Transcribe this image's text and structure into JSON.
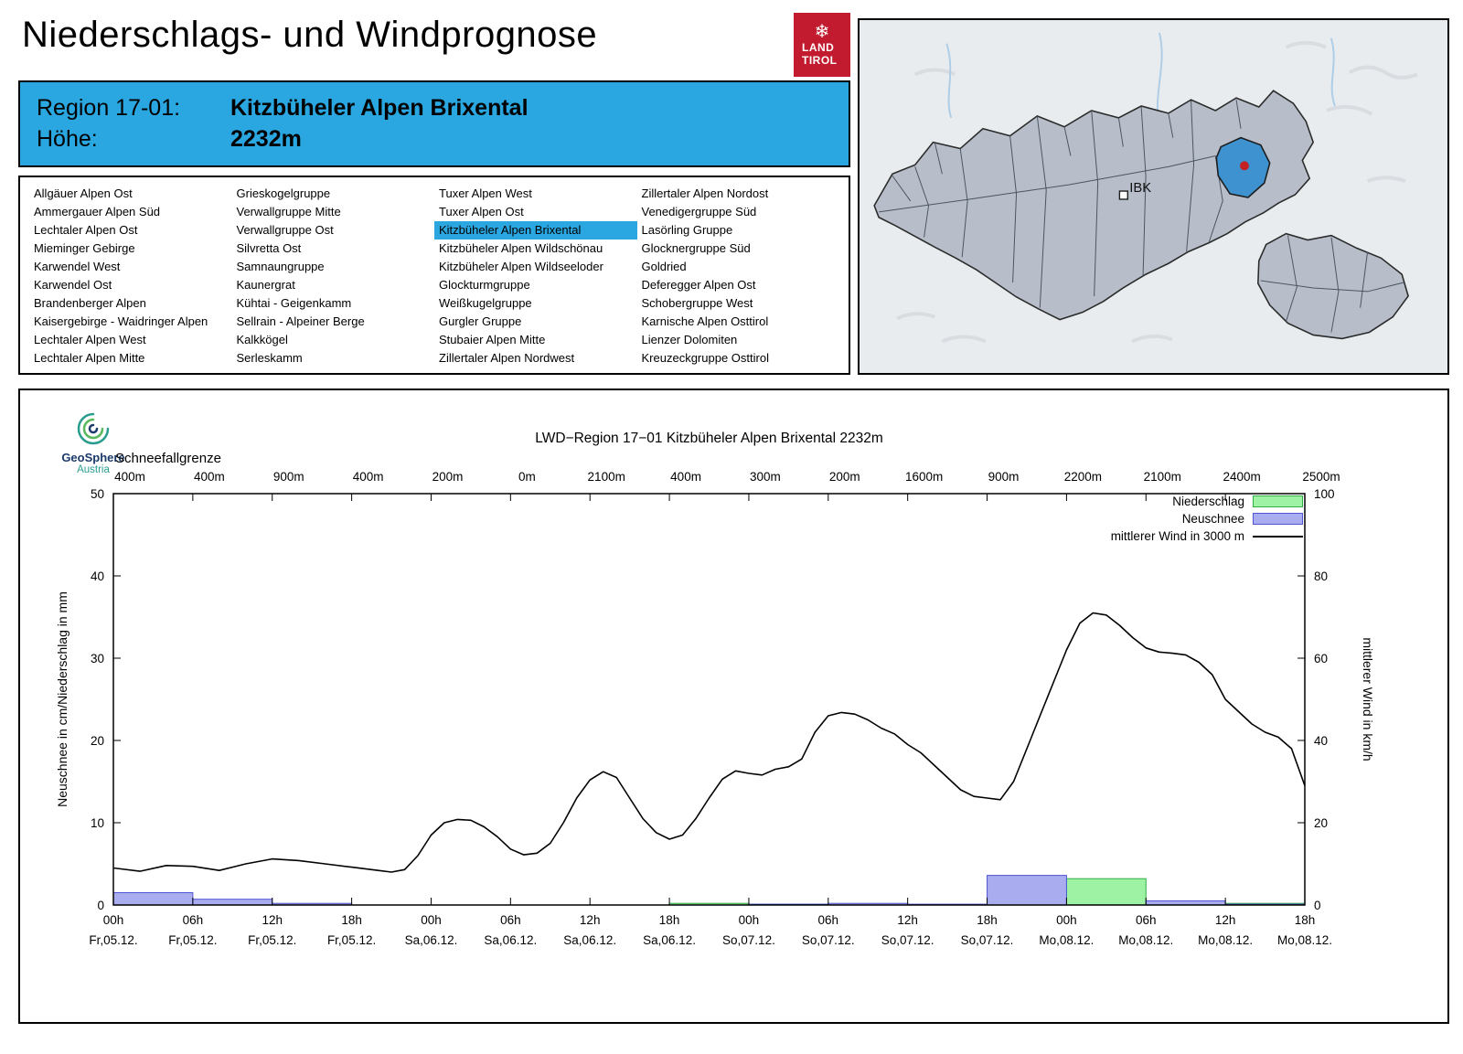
{
  "header": {
    "title": "Niederschlags- und Windprognose",
    "logo": {
      "line1": "LAND",
      "line2": "TIROL",
      "color": "#c21a2e"
    }
  },
  "region_box": {
    "region_label": "Region 17-01:",
    "region_name": "Kitzbüheler Alpen Brixental",
    "altitude_label": "Höhe:",
    "altitude_value": "2232m",
    "background": "#2aa7e1"
  },
  "region_list": {
    "selected": "Kitzbüheler Alpen Brixental",
    "highlight_color": "#2aa7e1",
    "columns": [
      [
        "Allgäuer Alpen Ost",
        "Ammergauer Alpen Süd",
        "Lechtaler Alpen Ost",
        "Mieminger Gebirge",
        "Karwendel West",
        "Karwendel Ost",
        "Brandenberger Alpen",
        "Kaisergebirge - Waidringer Alpen",
        "Lechtaler Alpen West",
        "Lechtaler Alpen Mitte"
      ],
      [
        "Grieskogelgruppe",
        "Verwallgruppe Mitte",
        "Verwallgruppe Ost",
        "Silvretta Ost",
        "Samnaungruppe",
        "Kaunergrat",
        "Kühtai - Geigenkamm",
        "Sellrain - Alpeiner Berge",
        "Kalkkögel",
        "Serleskamm"
      ],
      [
        "Tuxer Alpen West",
        "Tuxer Alpen Ost",
        "Kitzbüheler Alpen Brixental",
        "Kitzbüheler Alpen Wildschönau",
        "Kitzbüheler Alpen Wildseeloder",
        "Glockturmgruppe",
        "Weißkugelgruppe",
        "Gurgler Gruppe",
        "Stubaier Alpen Mitte",
        "Zillertaler Alpen Nordwest"
      ],
      [
        "Zillertaler Alpen Nordost",
        "Venedigergruppe Süd",
        "Lasörling Gruppe",
        "Glocknergruppe Süd",
        "Goldried",
        "Deferegger Alpen Ost",
        "Schobergruppe West",
        "Karnische Alpen Osttirol",
        "Lienzer Dolomiten",
        "Kreuzeckgruppe Osttirol"
      ]
    ]
  },
  "map": {
    "ibk_label": "IBK",
    "region_fill": "#b7bec9",
    "selected_region_fill": "#3d92cf",
    "marker_color": "#c32222"
  },
  "chart": {
    "logo": {
      "line1": "GeoSphere",
      "line2": "Austria"
    },
    "title": "LWD−Region 17−01 Kitzbüheler Alpen Brixental 2232m",
    "snowline_label": "Schneefallgrenze"
  },
  "chart_data": {
    "type": "mixed",
    "title": "LWD−Region 17−01 Kitzbüheler Alpen Brixental 2232m",
    "x_range_hours": [
      0,
      90
    ],
    "x_tick_interval_hours": 6,
    "x_ticks": [
      "00h",
      "06h",
      "12h",
      "18h",
      "00h",
      "06h",
      "12h",
      "18h",
      "00h",
      "06h",
      "12h",
      "18h",
      "00h",
      "06h",
      "12h",
      "18h"
    ],
    "x_dates": [
      "Fr,05.12.",
      "Fr,05.12.",
      "Fr,05.12.",
      "Fr,05.12.",
      "Sa,06.12.",
      "Sa,06.12.",
      "Sa,06.12.",
      "Sa,06.12.",
      "So,07.12.",
      "So,07.12.",
      "So,07.12.",
      "So,07.12.",
      "Mo,08.12.",
      "Mo,08.12.",
      "Mo,08.12.",
      "Mo,08.12."
    ],
    "snowline_m": [
      "400m",
      "400m",
      "900m",
      "400m",
      "200m",
      "0m",
      "2100m",
      "400m",
      "300m",
      "200m",
      "1600m",
      "900m",
      "2200m",
      "2100m",
      "2400m",
      "2500m"
    ],
    "y_left": {
      "label": "Neuschnee in cm/Niederschlag in mm",
      "min": 0,
      "max": 50,
      "ticks": [
        0,
        10,
        20,
        30,
        40,
        50
      ]
    },
    "y_right": {
      "label": "mittlerer Wind in km/h",
      "min": 0,
      "max": 100,
      "ticks": [
        0,
        20,
        40,
        60,
        80,
        100
      ]
    },
    "grid": false,
    "legend_position": "top-right",
    "series": [
      {
        "name": "Niederschlag",
        "type": "bar",
        "unit": "mm",
        "axis": "left",
        "interval_hours": 6,
        "fill": "#9df2a4",
        "stroke": "#2fae45",
        "values": [
          0,
          0,
          0,
          0,
          0,
          0,
          0,
          0.2,
          0.1,
          0.1,
          0,
          0,
          3.2,
          0.3,
          0.2
        ]
      },
      {
        "name": "Neuschnee",
        "type": "bar",
        "unit": "cm",
        "axis": "left",
        "interval_hours": 6,
        "fill": "#a9adf0",
        "stroke": "#5055d6",
        "values": [
          1.5,
          0.7,
          0.2,
          0,
          0,
          0,
          0,
          0,
          0.1,
          0.2,
          0.1,
          3.6,
          0,
          0.5,
          0.1
        ]
      },
      {
        "name": "mittlerer Wind in 3000 m",
        "type": "line",
        "unit": "km/h",
        "axis": "right",
        "stroke": "#000000",
        "points": [
          [
            0,
            9
          ],
          [
            2,
            8.2
          ],
          [
            4,
            9.6
          ],
          [
            6,
            9.4
          ],
          [
            8,
            8.4
          ],
          [
            10,
            10
          ],
          [
            12,
            11.2
          ],
          [
            14,
            10.8
          ],
          [
            16,
            10
          ],
          [
            18,
            9.2
          ],
          [
            20,
            8.4
          ],
          [
            21,
            8
          ],
          [
            22,
            8.6
          ],
          [
            23,
            12
          ],
          [
            24,
            17
          ],
          [
            25,
            20
          ],
          [
            26,
            20.8
          ],
          [
            27,
            20.6
          ],
          [
            28,
            19
          ],
          [
            29,
            16.6
          ],
          [
            30,
            13.6
          ],
          [
            31,
            12.2
          ],
          [
            32,
            12.6
          ],
          [
            33,
            15
          ],
          [
            34,
            20
          ],
          [
            35,
            26
          ],
          [
            36,
            30.4
          ],
          [
            37,
            32.4
          ],
          [
            38,
            31
          ],
          [
            39,
            26
          ],
          [
            40,
            21
          ],
          [
            41,
            17.6
          ],
          [
            42,
            16
          ],
          [
            43,
            17
          ],
          [
            44,
            21
          ],
          [
            45,
            26
          ],
          [
            46,
            30.6
          ],
          [
            47,
            32.6
          ],
          [
            48,
            32
          ],
          [
            49,
            31.6
          ],
          [
            50,
            33
          ],
          [
            51,
            33.6
          ],
          [
            52,
            35.5
          ],
          [
            53,
            42
          ],
          [
            54,
            46
          ],
          [
            55,
            46.8
          ],
          [
            56,
            46.4
          ],
          [
            57,
            45
          ],
          [
            58,
            43
          ],
          [
            59,
            41.6
          ],
          [
            60,
            39
          ],
          [
            61,
            37
          ],
          [
            62,
            34
          ],
          [
            63,
            31
          ],
          [
            64,
            28
          ],
          [
            65,
            26.4
          ],
          [
            66,
            26
          ],
          [
            67,
            25.6
          ],
          [
            68,
            30
          ],
          [
            69,
            38
          ],
          [
            70,
            46
          ],
          [
            71,
            54
          ],
          [
            72,
            62
          ],
          [
            73,
            68.5
          ],
          [
            74,
            71
          ],
          [
            75,
            70.5
          ],
          [
            76,
            68
          ],
          [
            77,
            65
          ],
          [
            78,
            62.5
          ],
          [
            79,
            61.5
          ],
          [
            80,
            61.2
          ],
          [
            81,
            60.8
          ],
          [
            82,
            59
          ],
          [
            83,
            56
          ],
          [
            84,
            50
          ],
          [
            85,
            47
          ],
          [
            86,
            44
          ],
          [
            87,
            42
          ],
          [
            88,
            40.8
          ],
          [
            89,
            38
          ],
          [
            90,
            29
          ]
        ]
      }
    ]
  }
}
